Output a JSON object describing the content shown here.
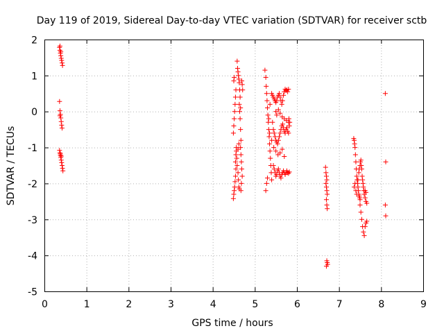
{
  "chart_data": {
    "type": "scatter",
    "title": "Day 119 of 2019, Sidereal Day-to-day VTEC variation (SDTVAR) for receiver sctb",
    "xlabel": "GPS time / hours",
    "ylabel": "SDTVAR / TECUs",
    "xlim": [
      0,
      9
    ],
    "ylim": [
      -5,
      2
    ],
    "xticks": [
      "0",
      "1",
      "2",
      "3",
      "4",
      "5",
      "6",
      "7",
      "8",
      "9"
    ],
    "yticks": [
      "-5",
      "-4",
      "-3",
      "-2",
      "-1",
      "0",
      "1",
      "2"
    ],
    "grid": true,
    "marker": "+",
    "series_color": "#ff0000",
    "series": [
      {
        "name": "SDTVAR",
        "points": [
          [
            0.36,
            1.78
          ],
          [
            0.37,
            1.7
          ],
          [
            0.38,
            1.62
          ],
          [
            0.39,
            1.55
          ],
          [
            0.4,
            1.48
          ],
          [
            0.41,
            1.42
          ],
          [
            0.42,
            1.35
          ],
          [
            0.43,
            1.28
          ],
          [
            0.37,
            1.82
          ],
          [
            0.39,
            1.66
          ],
          [
            0.36,
            0.28
          ],
          [
            0.37,
            0.02
          ],
          [
            0.38,
            -0.08
          ],
          [
            0.39,
            -0.18
          ],
          [
            0.4,
            -0.28
          ],
          [
            0.41,
            -0.38
          ],
          [
            0.42,
            -0.46
          ],
          [
            0.37,
            -0.12
          ],
          [
            0.36,
            -1.08
          ],
          [
            0.37,
            -1.15
          ],
          [
            0.38,
            -1.22
          ],
          [
            0.39,
            -1.28
          ],
          [
            0.4,
            -1.35
          ],
          [
            0.41,
            -1.42
          ],
          [
            0.42,
            -1.5
          ],
          [
            0.43,
            -1.58
          ],
          [
            0.44,
            -1.65
          ],
          [
            0.38,
            -1.18
          ],
          [
            0.4,
            -1.24
          ],
          [
            4.49,
            -2.42
          ],
          [
            4.5,
            -2.3
          ],
          [
            4.51,
            -2.2
          ],
          [
            4.52,
            -2.1
          ],
          [
            4.53,
            -1.95
          ],
          [
            4.54,
            -1.8
          ],
          [
            4.55,
            -1.6
          ],
          [
            4.54,
            -1.4
          ],
          [
            4.55,
            -1.2
          ],
          [
            4.56,
            -1.0
          ],
          [
            4.49,
            -0.6
          ],
          [
            4.5,
            -0.4
          ],
          [
            4.51,
            -0.2
          ],
          [
            4.52,
            0.0
          ],
          [
            4.53,
            0.2
          ],
          [
            4.54,
            0.4
          ],
          [
            4.55,
            0.6
          ],
          [
            4.5,
            0.85
          ],
          [
            4.51,
            0.95
          ],
          [
            4.58,
            1.4
          ],
          [
            4.59,
            1.2
          ],
          [
            4.6,
            1.1
          ],
          [
            4.61,
            1.0
          ],
          [
            4.62,
            0.9
          ],
          [
            4.63,
            0.8
          ],
          [
            4.64,
            0.6
          ],
          [
            4.65,
            0.4
          ],
          [
            4.63,
            0.2
          ],
          [
            4.64,
            0.0
          ],
          [
            4.65,
            -0.2
          ],
          [
            4.66,
            -0.5
          ],
          [
            4.67,
            -0.8
          ],
          [
            4.66,
            -1.0
          ],
          [
            4.67,
            -1.2
          ],
          [
            4.68,
            -1.4
          ],
          [
            4.69,
            -1.6
          ],
          [
            4.7,
            -1.8
          ],
          [
            4.68,
            -2.0
          ],
          [
            4.67,
            -2.2
          ],
          [
            4.56,
            -1.1
          ],
          [
            4.57,
            -1.3
          ],
          [
            4.58,
            -1.5
          ],
          [
            4.6,
            -1.7
          ],
          [
            4.61,
            -1.9
          ],
          [
            4.62,
            -2.1
          ],
          [
            4.63,
            -2.15
          ],
          [
            4.7,
            0.75
          ],
          [
            4.71,
            0.6
          ],
          [
            4.69,
            0.85
          ],
          [
            4.66,
            0.1
          ],
          [
            4.62,
            -0.9
          ],
          [
            4.6,
            -1.05
          ],
          [
            5.24,
            1.15
          ],
          [
            5.26,
            0.95
          ],
          [
            5.27,
            0.7
          ],
          [
            5.28,
            0.5
          ],
          [
            5.29,
            0.3
          ],
          [
            5.3,
            0.1
          ],
          [
            5.31,
            -0.1
          ],
          [
            5.32,
            -0.3
          ],
          [
            5.33,
            -0.5
          ],
          [
            5.34,
            -0.7
          ],
          [
            5.35,
            -0.9
          ],
          [
            5.36,
            -1.1
          ],
          [
            5.37,
            -1.3
          ],
          [
            5.38,
            -1.5
          ],
          [
            5.39,
            -1.7
          ],
          [
            5.4,
            -1.9
          ],
          [
            5.26,
            -2.2
          ],
          [
            5.28,
            -2.0
          ],
          [
            5.3,
            -1.85
          ],
          [
            5.4,
            0.5
          ],
          [
            5.42,
            0.45
          ],
          [
            5.44,
            0.4
          ],
          [
            5.46,
            0.35
          ],
          [
            5.48,
            0.3
          ],
          [
            5.5,
            0.25
          ],
          [
            5.52,
            0.3
          ],
          [
            5.54,
            0.4
          ],
          [
            5.56,
            0.45
          ],
          [
            5.58,
            0.5
          ],
          [
            5.6,
            0.4
          ],
          [
            5.62,
            0.3
          ],
          [
            5.64,
            0.2
          ],
          [
            5.66,
            0.3
          ],
          [
            5.68,
            0.45
          ],
          [
            5.7,
            0.55
          ],
          [
            5.72,
            0.62
          ],
          [
            5.74,
            0.58
          ],
          [
            5.76,
            0.6
          ],
          [
            5.78,
            0.55
          ],
          [
            5.8,
            0.62
          ],
          [
            5.42,
            -0.3
          ],
          [
            5.44,
            -0.5
          ],
          [
            5.46,
            -0.6
          ],
          [
            5.48,
            -0.7
          ],
          [
            5.5,
            -0.8
          ],
          [
            5.52,
            -0.85
          ],
          [
            5.54,
            -0.9
          ],
          [
            5.56,
            -0.8
          ],
          [
            5.58,
            -0.7
          ],
          [
            5.6,
            -0.6
          ],
          [
            5.62,
            -0.5
          ],
          [
            5.64,
            -0.4
          ],
          [
            5.66,
            -0.35
          ],
          [
            5.68,
            -0.45
          ],
          [
            5.7,
            -0.55
          ],
          [
            5.72,
            -0.6
          ],
          [
            5.74,
            -0.5
          ],
          [
            5.76,
            -0.45
          ],
          [
            5.78,
            -0.55
          ],
          [
            5.8,
            -0.6
          ],
          [
            5.44,
            -1.5
          ],
          [
            5.46,
            -1.6
          ],
          [
            5.48,
            -1.7
          ],
          [
            5.5,
            -1.8
          ],
          [
            5.52,
            -1.75
          ],
          [
            5.54,
            -1.65
          ],
          [
            5.56,
            -1.6
          ],
          [
            5.58,
            -1.7
          ],
          [
            5.6,
            -1.8
          ],
          [
            5.62,
            -1.85
          ],
          [
            5.64,
            -1.75
          ],
          [
            5.66,
            -1.7
          ],
          [
            5.68,
            -1.65
          ],
          [
            5.7,
            -1.7
          ],
          [
            5.72,
            -1.75
          ],
          [
            5.74,
            -1.7
          ],
          [
            5.76,
            -1.65
          ],
          [
            5.78,
            -1.7
          ],
          [
            5.8,
            -1.72
          ],
          [
            5.82,
            -1.68
          ],
          [
            5.5,
            0.0
          ],
          [
            5.52,
            -0.1
          ],
          [
            5.56,
            0.05
          ],
          [
            5.6,
            -0.05
          ],
          [
            5.65,
            -0.15
          ],
          [
            5.7,
            -0.2
          ],
          [
            5.75,
            -0.25
          ],
          [
            5.8,
            -0.3
          ],
          [
            5.82,
            -0.4
          ],
          [
            5.81,
            -0.2
          ],
          [
            5.83,
            -0.3
          ],
          [
            5.45,
            -1.0
          ],
          [
            5.5,
            -1.1
          ],
          [
            5.55,
            -1.2
          ],
          [
            5.6,
            -1.15
          ],
          [
            5.65,
            -1.05
          ],
          [
            5.7,
            -1.25
          ],
          [
            5.4,
            -0.8
          ],
          [
            5.35,
            -0.6
          ],
          [
            5.33,
            -0.2
          ],
          [
            5.36,
            0.2
          ],
          [
            6.68,
            -1.55
          ],
          [
            6.69,
            -1.7
          ],
          [
            6.7,
            -1.8
          ],
          [
            6.71,
            -1.9
          ],
          [
            6.69,
            -2.0
          ],
          [
            6.7,
            -2.1
          ],
          [
            6.71,
            -2.2
          ],
          [
            6.72,
            -2.3
          ],
          [
            6.7,
            -2.45
          ],
          [
            6.71,
            -2.6
          ],
          [
            6.72,
            -2.7
          ],
          [
            6.71,
            -4.15
          ],
          [
            6.72,
            -4.2
          ],
          [
            6.73,
            -4.25
          ],
          [
            6.7,
            -4.3
          ],
          [
            7.35,
            -0.75
          ],
          [
            7.36,
            -0.8
          ],
          [
            7.37,
            -0.9
          ],
          [
            7.38,
            -1.0
          ],
          [
            7.39,
            -1.2
          ],
          [
            7.4,
            -1.4
          ],
          [
            7.41,
            -1.6
          ],
          [
            7.42,
            -1.8
          ],
          [
            7.43,
            -1.9
          ],
          [
            7.44,
            -2.0
          ],
          [
            7.45,
            -2.1
          ],
          [
            7.46,
            -2.2
          ],
          [
            7.47,
            -2.3
          ],
          [
            7.48,
            -2.35
          ],
          [
            7.49,
            -2.4
          ],
          [
            7.5,
            -2.45
          ],
          [
            7.38,
            -2.0
          ],
          [
            7.4,
            -2.2
          ],
          [
            7.42,
            -2.3
          ],
          [
            7.36,
            -2.1
          ],
          [
            7.5,
            -1.5
          ],
          [
            7.51,
            -1.4
          ],
          [
            7.52,
            -1.35
          ],
          [
            7.53,
            -1.5
          ],
          [
            7.54,
            -1.6
          ],
          [
            7.55,
            -1.8
          ],
          [
            7.56,
            -1.9
          ],
          [
            7.57,
            -2.0
          ],
          [
            7.58,
            -2.1
          ],
          [
            7.59,
            -2.2
          ],
          [
            7.6,
            -2.3
          ],
          [
            7.62,
            -2.4
          ],
          [
            7.64,
            -2.5
          ],
          [
            7.66,
            -2.55
          ],
          [
            7.5,
            -2.6
          ],
          [
            7.52,
            -2.8
          ],
          [
            7.54,
            -3.0
          ],
          [
            7.56,
            -3.2
          ],
          [
            7.58,
            -3.35
          ],
          [
            7.6,
            -3.45
          ],
          [
            7.62,
            -3.2
          ],
          [
            7.64,
            -3.1
          ],
          [
            7.66,
            -3.05
          ],
          [
            7.6,
            -2.3
          ],
          [
            7.62,
            -2.2
          ],
          [
            7.64,
            -2.25
          ],
          [
            7.45,
            -1.9
          ],
          [
            7.47,
            -1.7
          ],
          [
            7.48,
            -1.6
          ],
          [
            8.1,
            0.5
          ],
          [
            8.11,
            -1.4
          ],
          [
            8.1,
            -2.6
          ],
          [
            8.11,
            -2.9
          ]
        ]
      }
    ]
  }
}
